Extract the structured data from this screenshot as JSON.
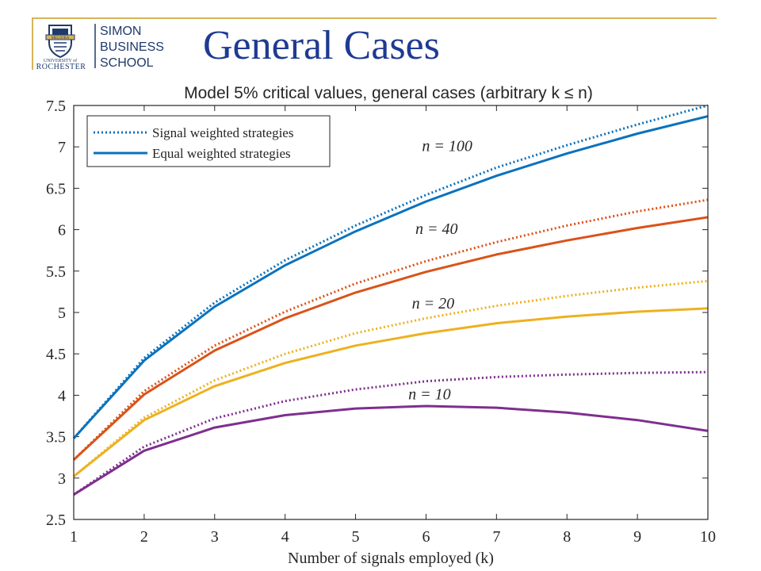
{
  "slide": {
    "title": "General Cases",
    "logo": {
      "school_line1": "SIMON",
      "school_line2": "BUSINESS",
      "school_line3": "SCHOOL",
      "univ_line1": "UNIVERSITY of",
      "univ_line2": "ROCHESTER",
      "seal_text": "MELIORA",
      "colors": {
        "navy": "#1f3a6b",
        "gold": "#d7b45a"
      }
    }
  },
  "chart_data": {
    "type": "line",
    "title": "Model 5% critical values, general cases (arbitrary k ≤ n)",
    "xlabel": "Number of signals employed (k)",
    "ylabel": "",
    "x": [
      1,
      2,
      3,
      4,
      5,
      6,
      7,
      8,
      9,
      10
    ],
    "xlim": [
      1,
      10
    ],
    "ylim": [
      2.5,
      7.5
    ],
    "xticks": [
      "1",
      "2",
      "3",
      "4",
      "5",
      "6",
      "7",
      "8",
      "9",
      "10"
    ],
    "yticks": [
      "2.5",
      "3",
      "3.5",
      "4",
      "4.5",
      "5",
      "5.5",
      "6",
      "6.5",
      "7",
      "7.5"
    ],
    "grid": false,
    "legend_position": "top-left",
    "legend": [
      {
        "label": "Signal weighted strategies",
        "style": "dotted"
      },
      {
        "label": "Equal weighted strategies",
        "style": "solid"
      }
    ],
    "annotations": [
      {
        "text": "n = 100",
        "x": 6.3,
        "y": 6.95,
        "color_ref": "n100"
      },
      {
        "text": "n = 40",
        "x": 6.15,
        "y": 5.95,
        "color_ref": "n40"
      },
      {
        "text": "n = 20",
        "x": 6.1,
        "y": 5.05,
        "color_ref": "n20"
      },
      {
        "text": "n = 10",
        "x": 6.05,
        "y": 3.95,
        "color_ref": "n10"
      }
    ],
    "colors": {
      "n100": "#0a72bd",
      "n40": "#d95319",
      "n20": "#edb120",
      "n10": "#7e2f8e"
    },
    "series": [
      {
        "group": "n100",
        "style": "dotted",
        "values": [
          3.48,
          4.45,
          5.12,
          5.63,
          6.05,
          6.42,
          6.75,
          7.02,
          7.27,
          7.5
        ]
      },
      {
        "group": "n100",
        "style": "solid",
        "values": [
          3.48,
          4.42,
          5.07,
          5.57,
          5.98,
          6.34,
          6.65,
          6.92,
          7.16,
          7.37
        ]
      },
      {
        "group": "n40",
        "style": "dotted",
        "values": [
          3.22,
          4.05,
          4.6,
          5.01,
          5.35,
          5.62,
          5.85,
          6.05,
          6.22,
          6.36
        ]
      },
      {
        "group": "n40",
        "style": "solid",
        "values": [
          3.22,
          4.01,
          4.54,
          4.93,
          5.24,
          5.49,
          5.7,
          5.87,
          6.02,
          6.15
        ]
      },
      {
        "group": "n20",
        "style": "dotted",
        "values": [
          3.02,
          3.73,
          4.18,
          4.5,
          4.75,
          4.93,
          5.08,
          5.2,
          5.3,
          5.38
        ]
      },
      {
        "group": "n20",
        "style": "solid",
        "values": [
          3.02,
          3.7,
          4.11,
          4.39,
          4.6,
          4.75,
          4.87,
          4.95,
          5.01,
          5.05
        ]
      },
      {
        "group": "n10",
        "style": "dotted",
        "values": [
          2.8,
          3.38,
          3.72,
          3.93,
          4.07,
          4.17,
          4.22,
          4.25,
          4.27,
          4.28
        ]
      },
      {
        "group": "n10",
        "style": "solid",
        "values": [
          2.8,
          3.33,
          3.61,
          3.76,
          3.84,
          3.87,
          3.85,
          3.79,
          3.7,
          3.57
        ]
      }
    ]
  }
}
